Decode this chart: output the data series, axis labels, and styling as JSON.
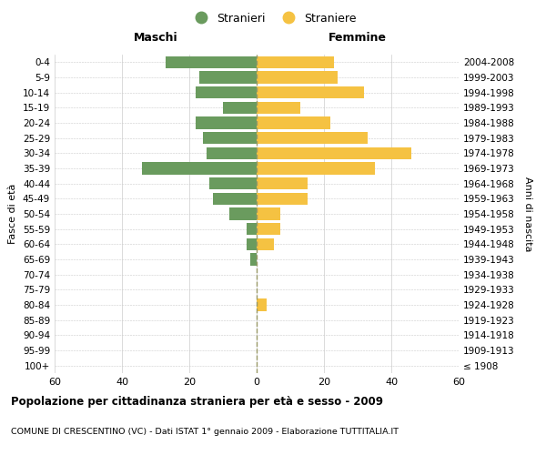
{
  "age_groups": [
    "100+",
    "95-99",
    "90-94",
    "85-89",
    "80-84",
    "75-79",
    "70-74",
    "65-69",
    "60-64",
    "55-59",
    "50-54",
    "45-49",
    "40-44",
    "35-39",
    "30-34",
    "25-29",
    "20-24",
    "15-19",
    "10-14",
    "5-9",
    "0-4"
  ],
  "birth_years": [
    "≤ 1908",
    "1909-1913",
    "1914-1918",
    "1919-1923",
    "1924-1928",
    "1929-1933",
    "1934-1938",
    "1939-1943",
    "1944-1948",
    "1949-1953",
    "1954-1958",
    "1959-1963",
    "1964-1968",
    "1969-1973",
    "1974-1978",
    "1979-1983",
    "1984-1988",
    "1989-1993",
    "1994-1998",
    "1999-2003",
    "2004-2008"
  ],
  "maschi": [
    0,
    0,
    0,
    0,
    0,
    0,
    0,
    2,
    3,
    3,
    8,
    13,
    14,
    34,
    15,
    16,
    18,
    10,
    18,
    17,
    27
  ],
  "femmine": [
    0,
    0,
    0,
    0,
    3,
    0,
    0,
    0,
    5,
    7,
    7,
    15,
    15,
    35,
    46,
    33,
    22,
    13,
    32,
    24,
    23
  ],
  "maschi_color": "#6a9b5e",
  "femmine_color": "#f5c242",
  "grid_color": "#cccccc",
  "title": "Popolazione per cittadinanza straniera per età e sesso - 2009",
  "subtitle": "COMUNE DI CRESCENTINO (VC) - Dati ISTAT 1° gennaio 2009 - Elaborazione TUTTITALIA.IT",
  "xlabel_left": "Maschi",
  "xlabel_right": "Femmine",
  "ylabel_left": "Fasce di età",
  "ylabel_right": "Anni di nascita",
  "legend_maschi": "Stranieri",
  "legend_femmine": "Straniere",
  "xlim": 60,
  "bar_height": 0.8,
  "center_line_color": "#999966",
  "center_line_style": "--"
}
